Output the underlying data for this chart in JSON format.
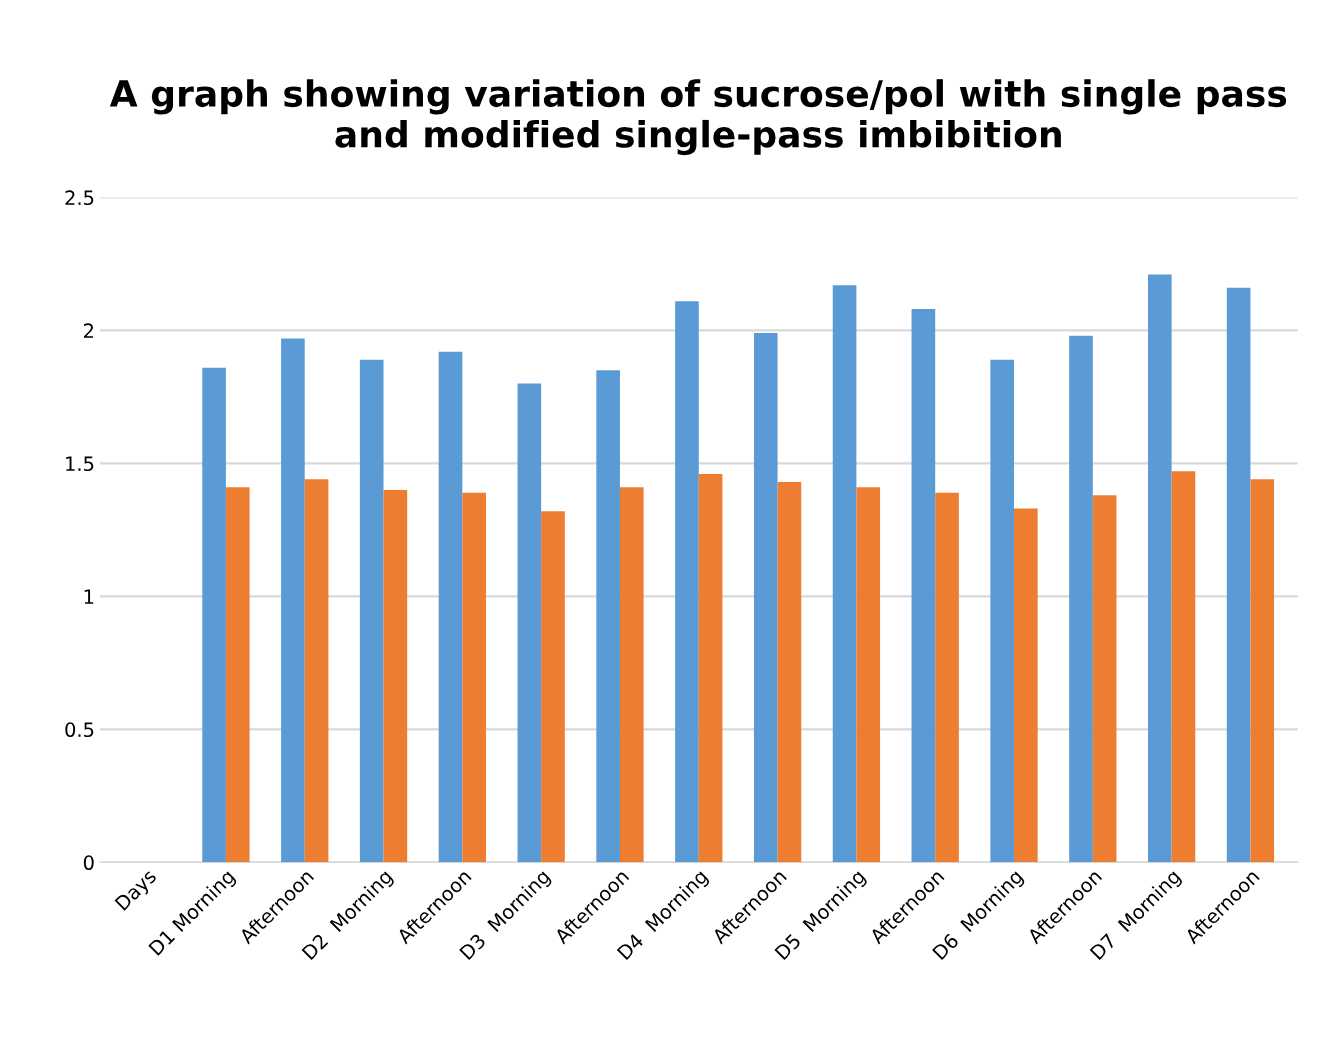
{
  "chart_data": {
    "type": "bar",
    "title": "A graph showing variation of sucrose/pol with single pass and modified single-pass imbibition",
    "categories": [
      "Days",
      "D1 Morning",
      "Afternoon",
      "D2  Morning",
      "Afternoon",
      "D3  Morning",
      "Afternoon",
      "D4  Morning",
      "Afternoon",
      "D5  Morning",
      "Afternoon",
      "D6  Morning",
      "Afternoon",
      "D7  Morning",
      "Afternoon"
    ],
    "series": [
      {
        "color": "#5b9bd5",
        "values": [
          0,
          1.86,
          1.97,
          1.89,
          1.92,
          1.8,
          1.85,
          2.11,
          1.99,
          2.17,
          2.08,
          1.89,
          1.98,
          2.21,
          2.16
        ]
      },
      {
        "color": "#ed7d31",
        "values": [
          0,
          1.41,
          1.44,
          1.4,
          1.39,
          1.32,
          1.41,
          1.46,
          1.43,
          1.41,
          1.39,
          1.33,
          1.38,
          1.47,
          1.44
        ]
      }
    ],
    "ylim": [
      0,
      2.5
    ],
    "yticks": [
      0,
      0.5,
      1,
      1.5,
      2,
      2.5
    ],
    "grid": "y",
    "legend": false
  }
}
